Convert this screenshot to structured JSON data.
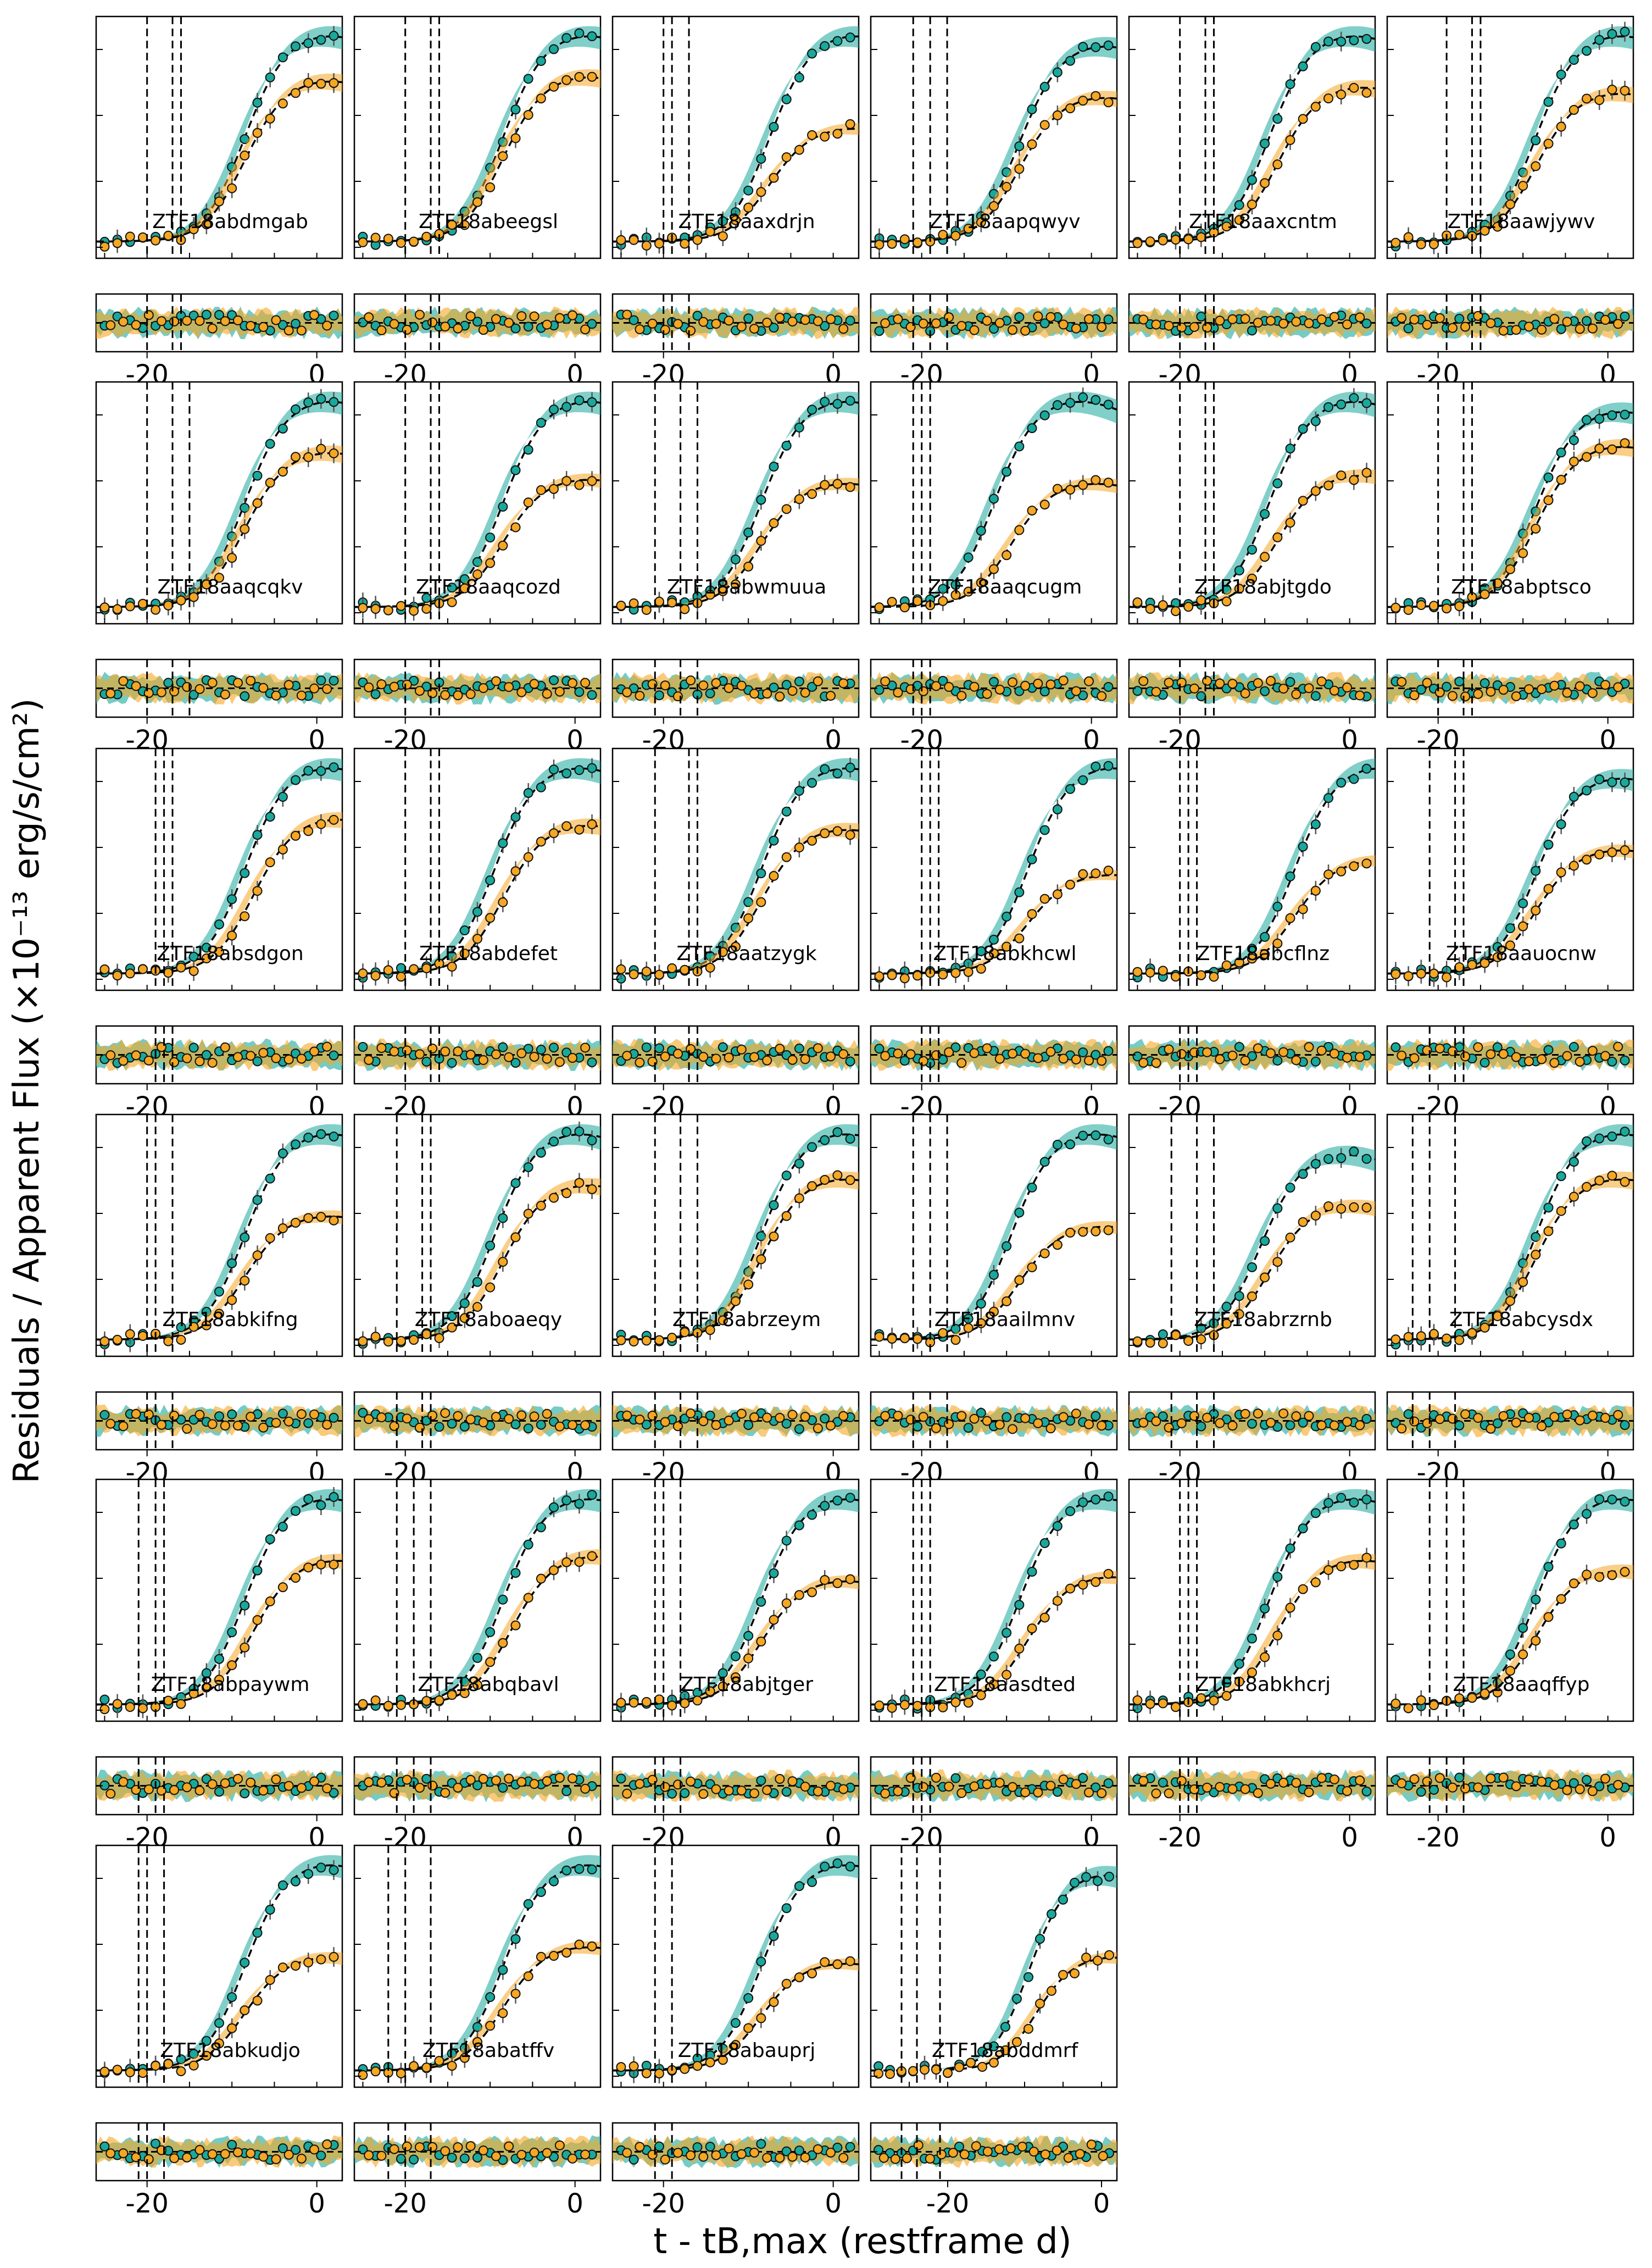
{
  "figure": {
    "ylabel": "Residuals / Apparent Flux (×10⁻¹³ erg/s/cm²)",
    "xlabel": "t - tB,max (restframe d)",
    "colors": {
      "band_g": "#1aa89c",
      "band_r": "#f5a623",
      "fit_line": "#000000"
    },
    "x_tick_labels": [
      "-20",
      "0"
    ]
  },
  "chart_data": [
    {
      "type": "line",
      "object": "ZTF18abdmgab",
      "row": 0,
      "col": 0,
      "xlim": [
        -26,
        3
      ],
      "vlines": [
        -20,
        -17,
        -16
      ],
      "tmax_g": 0,
      "tmax_r": 0,
      "peak_g": 1.0,
      "peak_r": 0.78
    },
    {
      "type": "line",
      "object": "ZTF18abeegsl",
      "row": 0,
      "col": 1,
      "xlim": [
        -26,
        3
      ],
      "vlines": [
        -20,
        -17,
        -16
      ],
      "tmax_g": 0,
      "tmax_r": 0,
      "peak_g": 1.0,
      "peak_r": 0.8
    },
    {
      "type": "line",
      "object": "ZTF18aaxdrjn",
      "row": 0,
      "col": 2,
      "xlim": [
        -26,
        3
      ],
      "vlines": [
        -20,
        -19,
        -17
      ],
      "tmax_g": 1,
      "tmax_r": 1,
      "peak_g": 1.0,
      "peak_r": 0.55
    },
    {
      "type": "line",
      "object": "ZTF18aapqwyv",
      "row": 0,
      "col": 3,
      "xlim": [
        -26,
        3
      ],
      "vlines": [
        -21,
        -19,
        -17
      ],
      "tmax_g": 0,
      "tmax_r": 0,
      "peak_g": 0.95,
      "peak_r": 0.7
    },
    {
      "type": "line",
      "object": "ZTF18aaxcntm",
      "row": 0,
      "col": 4,
      "xlim": [
        -26,
        3
      ],
      "vlines": [
        -20,
        -17,
        -16
      ],
      "tmax_g": -1,
      "tmax_r": 0,
      "peak_g": 1.0,
      "peak_r": 0.75
    },
    {
      "type": "line",
      "object": "ZTF18aawjywv",
      "row": 0,
      "col": 5,
      "xlim": [
        -26,
        3
      ],
      "vlines": [
        -19,
        -16,
        -15
      ],
      "tmax_g": 0,
      "tmax_r": 0,
      "peak_g": 1.0,
      "peak_r": 0.72
    },
    {
      "type": "line",
      "object": "ZTF18aaqcqkv",
      "row": 1,
      "col": 0,
      "xlim": [
        -26,
        3
      ],
      "vlines": [
        -20,
        -17,
        -15
      ],
      "tmax_g": 0,
      "tmax_r": 0,
      "peak_g": 1.0,
      "peak_r": 0.75
    },
    {
      "type": "line",
      "object": "ZTF18aaqcozd",
      "row": 1,
      "col": 1,
      "xlim": [
        -26,
        3
      ],
      "vlines": [
        -20,
        -17,
        -16
      ],
      "tmax_g": 0,
      "tmax_r": 0,
      "peak_g": 1.0,
      "peak_r": 0.62
    },
    {
      "type": "line",
      "object": "ZTF18abwmuua",
      "row": 1,
      "col": 2,
      "xlim": [
        -26,
        3
      ],
      "vlines": [
        -21,
        -18,
        -16
      ],
      "tmax_g": 0,
      "tmax_r": 0,
      "peak_g": 1.0,
      "peak_r": 0.6
    },
    {
      "type": "line",
      "object": "ZTF18aaqcugm",
      "row": 1,
      "col": 3,
      "xlim": [
        -26,
        3
      ],
      "vlines": [
        -21,
        -20,
        -19
      ],
      "tmax_g": -3,
      "tmax_r": -1,
      "peak_g": 1.0,
      "peak_r": 0.6
    },
    {
      "type": "line",
      "object": "ZTF18abjtgdo",
      "row": 1,
      "col": 4,
      "xlim": [
        -26,
        3
      ],
      "vlines": [
        -20,
        -17,
        -16
      ],
      "tmax_g": -1,
      "tmax_r": 0,
      "peak_g": 1.0,
      "peak_r": 0.64
    },
    {
      "type": "line",
      "object": "ZTF18abptsco",
      "row": 1,
      "col": 5,
      "xlim": [
        -26,
        3
      ],
      "vlines": [
        -20,
        -17,
        -16
      ],
      "tmax_g": 0,
      "tmax_r": 0,
      "peak_g": 0.95,
      "peak_r": 0.78
    },
    {
      "type": "line",
      "object": "ZTF18absdgon",
      "row": 2,
      "col": 0,
      "xlim": [
        -26,
        3
      ],
      "vlines": [
        -19,
        -18,
        -17
      ],
      "tmax_g": 0,
      "tmax_r": 1,
      "peak_g": 1.0,
      "peak_r": 0.75
    },
    {
      "type": "line",
      "object": "ZTF18abdefet",
      "row": 2,
      "col": 1,
      "xlim": [
        -26,
        3
      ],
      "vlines": [
        -20,
        -17,
        -16
      ],
      "tmax_g": -1,
      "tmax_r": 0,
      "peak_g": 1.0,
      "peak_r": 0.72
    },
    {
      "type": "line",
      "object": "ZTF18aatzygk",
      "row": 2,
      "col": 2,
      "xlim": [
        -26,
        3
      ],
      "vlines": [
        -21,
        -17,
        -16
      ],
      "tmax_g": 0,
      "tmax_r": 0,
      "peak_g": 1.0,
      "peak_r": 0.7
    },
    {
      "type": "line",
      "object": "ZTF18abkhcwl",
      "row": 2,
      "col": 3,
      "xlim": [
        -26,
        3
      ],
      "vlines": [
        -20,
        -19,
        -18
      ],
      "tmax_g": 1,
      "tmax_r": 1,
      "peak_g": 1.0,
      "peak_r": 0.48
    },
    {
      "type": "line",
      "object": "ZTF18abcflnz",
      "row": 2,
      "col": 4,
      "xlim": [
        -26,
        3
      ],
      "vlines": [
        -20,
        -19,
        -18
      ],
      "tmax_g": 2,
      "tmax_r": 2,
      "peak_g": 1.0,
      "peak_r": 0.55
    },
    {
      "type": "line",
      "object": "ZTF18aauocnw",
      "row": 2,
      "col": 5,
      "xlim": [
        -26,
        3
      ],
      "vlines": [
        -21,
        -18,
        -17
      ],
      "tmax_g": 0,
      "tmax_r": 0,
      "peak_g": 0.95,
      "peak_r": 0.6
    },
    {
      "type": "line",
      "object": "ZTF18abkifng",
      "row": 3,
      "col": 0,
      "xlim": [
        -26,
        3
      ],
      "vlines": [
        -20,
        -19,
        -17
      ],
      "tmax_g": 0,
      "tmax_r": 0,
      "peak_g": 1.0,
      "peak_r": 0.6
    },
    {
      "type": "line",
      "object": "ZTF18aboaeqy",
      "row": 3,
      "col": 1,
      "xlim": [
        -26,
        3
      ],
      "vlines": [
        -21,
        -18,
        -17
      ],
      "tmax_g": -1,
      "tmax_r": 0,
      "peak_g": 1.0,
      "peak_r": 0.75
    },
    {
      "type": "line",
      "object": "ZTF18abrzeym",
      "row": 3,
      "col": 2,
      "xlim": [
        -26,
        3
      ],
      "vlines": [
        -21,
        -18,
        -16
      ],
      "tmax_g": 0,
      "tmax_r": 0,
      "peak_g": 1.0,
      "peak_r": 0.78
    },
    {
      "type": "line",
      "object": "ZTF18aailmnv",
      "row": 3,
      "col": 3,
      "xlim": [
        -26,
        3
      ],
      "vlines": [
        -21,
        -19,
        -17
      ],
      "tmax_g": -1,
      "tmax_r": 0,
      "peak_g": 1.0,
      "peak_r": 0.55
    },
    {
      "type": "line",
      "object": "ZTF18abrzrnb",
      "row": 3,
      "col": 4,
      "xlim": [
        -26,
        3
      ],
      "vlines": [
        -21,
        -18,
        -16
      ],
      "tmax_g": -2,
      "tmax_r": -1,
      "peak_g": 0.9,
      "peak_r": 0.65
    },
    {
      "type": "line",
      "object": "ZTF18abcysdx",
      "row": 3,
      "col": 5,
      "xlim": [
        -26,
        3
      ],
      "vlines": [
        -23,
        -21,
        -18
      ],
      "tmax_g": 0,
      "tmax_r": 0,
      "peak_g": 1.0,
      "peak_r": 0.78
    },
    {
      "type": "line",
      "object": "ZTF18abpaywm",
      "row": 4,
      "col": 0,
      "xlim": [
        -26,
        3
      ],
      "vlines": [
        -21,
        -19,
        -18
      ],
      "tmax_g": 0,
      "tmax_r": 1,
      "peak_g": 1.0,
      "peak_r": 0.7
    },
    {
      "type": "line",
      "object": "ZTF18abqbavl",
      "row": 4,
      "col": 1,
      "xlim": [
        -26,
        3
      ],
      "vlines": [
        -21,
        -19,
        -17
      ],
      "tmax_g": 0,
      "tmax_r": 1,
      "peak_g": 1.0,
      "peak_r": 0.72
    },
    {
      "type": "line",
      "object": "ZTF18abjtger",
      "row": 4,
      "col": 2,
      "xlim": [
        -26,
        3
      ],
      "vlines": [
        -21,
        -20,
        -18
      ],
      "tmax_g": 0,
      "tmax_r": 0,
      "peak_g": 1.0,
      "peak_r": 0.6
    },
    {
      "type": "line",
      "object": "ZTF18aasdted",
      "row": 4,
      "col": 3,
      "xlim": [
        -26,
        3
      ],
      "vlines": [
        -21,
        -20,
        -19
      ],
      "tmax_g": 0,
      "tmax_r": 1,
      "peak_g": 1.0,
      "peak_r": 0.62
    },
    {
      "type": "line",
      "object": "ZTF18abkhcrj",
      "row": 4,
      "col": 4,
      "xlim": [
        -26,
        3
      ],
      "vlines": [
        -20,
        -19,
        -18
      ],
      "tmax_g": -1,
      "tmax_r": 0,
      "peak_g": 1.0,
      "peak_r": 0.7
    },
    {
      "type": "line",
      "object": "ZTF18aaqffyp",
      "row": 4,
      "col": 5,
      "xlim": [
        -26,
        3
      ],
      "vlines": [
        -21,
        -19,
        -17
      ],
      "tmax_g": 0,
      "tmax_r": 0,
      "peak_g": 1.0,
      "peak_r": 0.65
    },
    {
      "type": "line",
      "object": "ZTF18abkudjo",
      "row": 5,
      "col": 0,
      "xlim": [
        -26,
        3
      ],
      "vlines": [
        -21,
        -20,
        -18
      ],
      "tmax_g": 0,
      "tmax_r": 0,
      "peak_g": 1.0,
      "peak_r": 0.55
    },
    {
      "type": "line",
      "object": "ZTF18abatffv",
      "row": 5,
      "col": 1,
      "xlim": [
        -26,
        3
      ],
      "vlines": [
        -22,
        -20,
        -17
      ],
      "tmax_g": 0,
      "tmax_r": 0,
      "peak_g": 1.0,
      "peak_r": 0.6
    },
    {
      "type": "line",
      "object": "ZTF18abauprj",
      "row": 5,
      "col": 2,
      "xlim": [
        -26,
        3
      ],
      "vlines": [
        -21,
        -19
      ],
      "tmax_g": 0,
      "tmax_r": 0,
      "peak_g": 1.0,
      "peak_r": 0.52
    },
    {
      "type": "line",
      "object": "ZTF18abddmrf",
      "row": 5,
      "col": 3,
      "xlim": [
        -30,
        2
      ],
      "vlines": [
        -26,
        -24,
        -21
      ],
      "tmax_g": -1,
      "tmax_r": 0,
      "peak_g": 0.95,
      "peak_r": 0.55
    }
  ]
}
